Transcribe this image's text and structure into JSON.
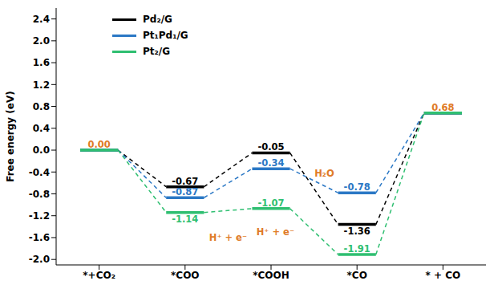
{
  "chart_data": {
    "type": "energy",
    "y_label": "Free energy (eV)",
    "categories": [
      "*+CO₂",
      "*COO",
      "*COOH",
      "*CO",
      "* + CO"
    ],
    "ylim": [
      -2.1,
      2.6
    ],
    "yticks": [
      {
        "value": -2.0,
        "label": "-2.0"
      },
      -1.6,
      -1.2,
      -0.8,
      -0.4,
      {
        "value": 0.0,
        "label": "0.0"
      },
      0.4,
      0.8,
      1.2,
      1.6,
      {
        "value": 2.0,
        "label": "2.0"
      },
      2.4
    ],
    "legend": "top-left",
    "data_labels": true,
    "line_style": "dashed",
    "series": [
      {
        "name": "Pd₂/G",
        "color": "#000000",
        "values": [
          0.0,
          -0.67,
          -0.05,
          -1.36,
          0.68
        ],
        "value_labels": [
          null,
          "-0.67",
          "-0.05",
          "-1.36",
          null
        ]
      },
      {
        "name": "Pt₁Pd₁/G",
        "color": "#2b78c5",
        "values": [
          0.0,
          -0.87,
          -0.34,
          -0.78,
          0.68
        ],
        "value_labels": [
          null,
          "-0.87",
          "-0.34",
          "-0.78",
          null
        ]
      },
      {
        "name": "Pt₂/G",
        "color": "#2fbf71",
        "values": [
          0.0,
          -1.14,
          -1.07,
          -1.91,
          0.68
        ],
        "value_labels": [
          null,
          "-1.14",
          "-1.07",
          "-1.91",
          null
        ]
      }
    ],
    "common_labels": [
      {
        "index": 0,
        "value": 0.0,
        "label": "0.00",
        "color": "#e07b28"
      },
      {
        "index": 4,
        "value": 0.68,
        "label": "0.68",
        "color": "#e07b28"
      }
    ],
    "annotations": [
      {
        "text": "H⁺ + e⁻",
        "color": "#e07b28"
      },
      {
        "text": "H⁺ + e⁻",
        "color": "#e07b28"
      },
      {
        "text": "H₂O",
        "color": "#e07b28"
      }
    ]
  }
}
